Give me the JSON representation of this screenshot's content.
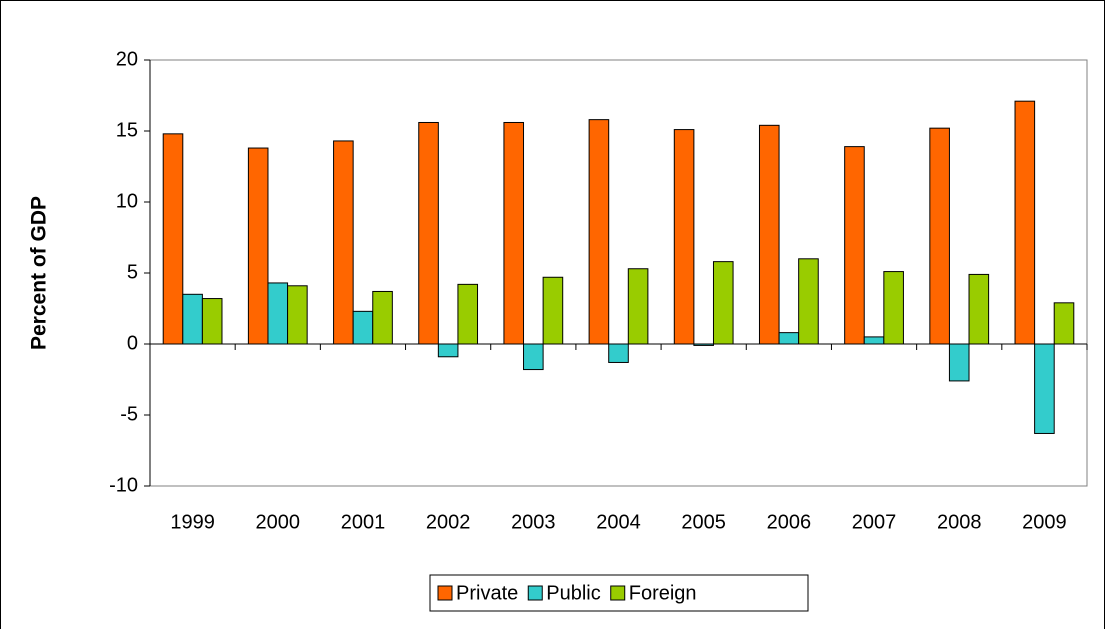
{
  "chart_data": {
    "type": "bar",
    "y_label": "Percent of GDP",
    "categories": [
      "1999",
      "2000",
      "2001",
      "2002",
      "2003",
      "2004",
      "2005",
      "2006",
      "2007",
      "2008",
      "2009"
    ],
    "series": [
      {
        "name": "Private",
        "color": "#ff6600",
        "values": [
          14.8,
          13.8,
          14.3,
          15.6,
          15.6,
          15.8,
          15.1,
          15.4,
          13.9,
          15.2,
          17.1
        ]
      },
      {
        "name": "Public",
        "color": "#33cccc",
        "values": [
          3.5,
          4.3,
          2.3,
          -0.9,
          -1.8,
          -1.3,
          -0.1,
          0.8,
          0.5,
          -2.6,
          -6.3
        ]
      },
      {
        "name": "Foreign",
        "color": "#99cc00",
        "values": [
          3.2,
          4.1,
          3.7,
          4.2,
          4.7,
          5.3,
          5.8,
          6.0,
          5.1,
          4.9,
          2.9
        ]
      }
    ],
    "ylim": [
      -10,
      20
    ],
    "yticks": [
      -10,
      -5,
      0,
      5,
      10,
      15,
      20
    ],
    "legend": "bottom"
  }
}
